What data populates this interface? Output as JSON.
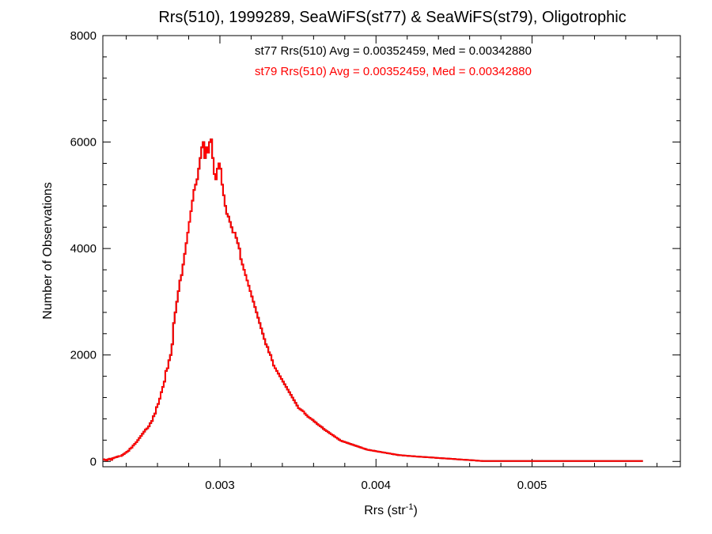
{
  "chart_data": {
    "type": "histogram",
    "title": "Rrs(510), 1999289, SeaWiFS(st77) & SeaWiFS(st79), Oligotrophic",
    "xlabel": "Rrs (str",
    "xlabel_sup": "-1",
    "xlabel_close": ")",
    "ylabel": "Number of Observations",
    "xlim": [
      0.00225,
      0.00595
    ],
    "ylim": [
      -100,
      8000
    ],
    "x_ticks": [
      0.003,
      0.004,
      0.005
    ],
    "x_tick_labels": [
      "0.003",
      "0.004",
      "0.005"
    ],
    "y_ticks": [
      0,
      2000,
      4000,
      6000,
      8000
    ],
    "y_tick_labels": [
      "0",
      "2000",
      "4000",
      "6000",
      "8000"
    ],
    "annotations": [
      {
        "text": "st77 Rrs(510) Avg = 0.00352459, Med = 0.00342880",
        "color": "#000000"
      },
      {
        "text": "st79 Rrs(510) Avg = 0.00352459, Med = 0.00342880",
        "color": "#ff0000"
      }
    ],
    "series": [
      {
        "name": "st77",
        "color": "#000000"
      },
      {
        "name": "st79",
        "color": "#ff0000"
      }
    ],
    "bin_width": 1e-05,
    "bins_x_start": 0.00225,
    "counts": [
      40,
      30,
      20,
      40,
      50,
      30,
      60,
      70,
      80,
      90,
      100,
      100,
      120,
      140,
      160,
      180,
      200,
      240,
      260,
      300,
      330,
      360,
      400,
      440,
      480,
      520,
      560,
      600,
      620,
      660,
      720,
      760,
      850,
      900,
      1020,
      1080,
      1180,
      1300,
      1400,
      1500,
      1700,
      1750,
      1900,
      2000,
      2200,
      2600,
      2800,
      3000,
      3200,
      3400,
      3500,
      3700,
      3900,
      4100,
      4300,
      4500,
      4700,
      4900,
      5100,
      5200,
      5300,
      5500,
      5700,
      5900,
      6000,
      5700,
      5900,
      5800,
      6000,
      6050,
      5700,
      5400,
      5300,
      5500,
      5600,
      5500,
      5200,
      5000,
      4800,
      4650,
      4600,
      4500,
      4400,
      4300,
      4300,
      4200,
      4100,
      4000,
      3800,
      3700,
      3600,
      3500,
      3400,
      3300,
      3200,
      3100,
      3000,
      2900,
      2800,
      2700,
      2600,
      2500,
      2400,
      2300,
      2200,
      2150,
      2050,
      2000,
      1900,
      1800,
      1750,
      1700,
      1650,
      1600,
      1550,
      1500,
      1450,
      1400,
      1350,
      1300,
      1250,
      1200,
      1150,
      1100,
      1050,
      1000,
      980,
      960,
      940,
      900,
      870,
      840,
      820,
      800,
      780,
      750,
      730,
      700,
      680,
      660,
      640,
      610,
      590,
      570,
      550,
      530,
      510,
      490,
      470,
      450,
      430,
      410,
      390,
      380,
      370,
      360,
      350,
      340,
      330,
      320,
      310,
      300,
      290,
      280,
      270,
      260,
      250,
      240,
      230,
      220,
      215,
      210,
      205,
      200,
      195,
      190,
      185,
      180,
      175,
      170,
      165,
      160,
      155,
      150,
      145,
      140,
      135,
      130,
      125,
      120,
      118,
      115,
      112,
      110,
      108,
      105,
      102,
      100,
      98,
      96,
      94,
      92,
      90,
      88,
      86,
      84,
      82,
      80,
      78,
      76,
      74,
      72,
      70,
      68,
      66,
      64,
      62,
      60,
      58,
      56,
      54,
      52,
      50,
      48,
      46,
      44,
      42,
      40,
      38,
      36,
      34,
      32,
      30,
      28,
      26,
      24,
      22,
      20,
      18,
      16,
      14,
      12,
      10,
      8,
      8,
      8,
      8,
      8,
      8,
      8,
      8,
      8,
      8,
      8,
      8,
      8,
      8,
      8,
      8,
      8,
      8,
      8,
      8,
      8,
      8,
      8,
      8,
      8,
      8,
      8,
      8,
      8,
      8,
      8,
      8,
      8,
      8,
      8,
      8,
      8,
      8,
      8,
      8,
      8,
      8,
      8,
      8,
      8,
      8,
      8,
      8,
      8,
      8,
      8,
      8,
      8,
      8,
      8,
      8,
      8,
      8,
      8,
      8,
      8,
      8,
      8,
      8,
      8,
      8,
      8,
      8,
      8,
      8,
      8,
      8,
      8,
      8,
      8,
      8,
      8,
      8,
      8,
      8,
      8,
      8,
      8,
      8,
      8,
      8,
      8,
      8,
      8,
      8,
      8,
      8,
      8,
      8,
      8,
      8,
      8,
      8,
      8,
      8,
      8,
      8,
      8
    ]
  }
}
